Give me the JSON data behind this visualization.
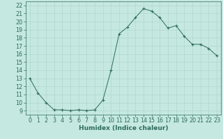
{
  "x": [
    0,
    1,
    2,
    3,
    4,
    5,
    6,
    7,
    8,
    9,
    10,
    11,
    12,
    13,
    14,
    15,
    16,
    17,
    18,
    19,
    20,
    21,
    22,
    23
  ],
  "y": [
    13.0,
    11.2,
    10.0,
    9.1,
    9.1,
    9.0,
    9.1,
    9.0,
    9.1,
    10.3,
    14.0,
    18.5,
    19.3,
    20.5,
    21.6,
    21.3,
    20.5,
    19.2,
    19.5,
    18.2,
    17.2,
    17.2,
    16.7,
    15.8
  ],
  "xlabel": "Humidex (Indice chaleur)",
  "xlim": [
    -0.5,
    23.5
  ],
  "ylim": [
    8.5,
    22.5
  ],
  "yticks": [
    9,
    10,
    11,
    12,
    13,
    14,
    15,
    16,
    17,
    18,
    19,
    20,
    21,
    22
  ],
  "xticks": [
    0,
    1,
    2,
    3,
    4,
    5,
    6,
    7,
    8,
    9,
    10,
    11,
    12,
    13,
    14,
    15,
    16,
    17,
    18,
    19,
    20,
    21,
    22,
    23
  ],
  "line_color": "#2d6b5e",
  "marker": "+",
  "bg_color": "#c5e8e0",
  "grid_color": "#b0d8cf",
  "label_fontsize": 6.5,
  "tick_fontsize": 5.8
}
